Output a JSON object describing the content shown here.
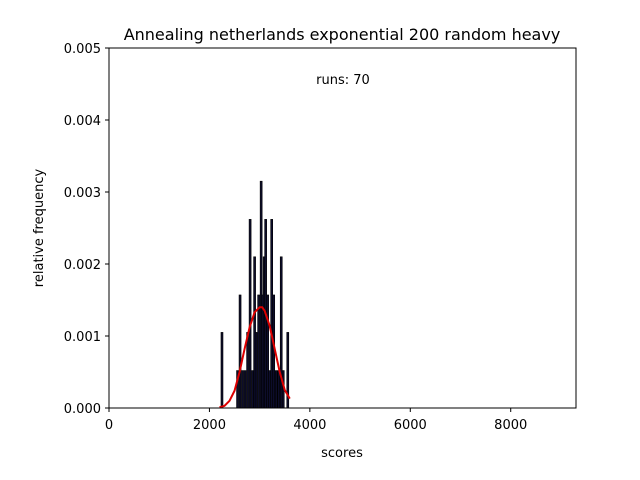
{
  "chart_data": {
    "type": "bar",
    "title": "Annealing netherlands exponential 200 random heavy",
    "xlabel": "scores",
    "ylabel": "relative frequency",
    "annotation": "runs: 70",
    "xlim": [
      0,
      9300
    ],
    "ylim": [
      0,
      0.005
    ],
    "xticks": [
      0,
      2000,
      4000,
      6000,
      8000
    ],
    "xtick_labels": [
      "0",
      "2000",
      "4000",
      "6000",
      "8000"
    ],
    "yticks": [
      0,
      0.001,
      0.002,
      0.003,
      0.004,
      0.005
    ],
    "ytick_labels": [
      "0.000",
      "0.001",
      "0.002",
      "0.003",
      "0.004",
      "0.005"
    ],
    "grid": false,
    "bin_width": 27,
    "bars_color": "#0d0d2b",
    "curve_color": "#dd0000",
    "bars": [
      {
        "x": 2250,
        "value": 0.00105
      },
      {
        "x": 2560,
        "value": 0.00052
      },
      {
        "x": 2610,
        "value": 0.00157
      },
      {
        "x": 2660,
        "value": 0.00052
      },
      {
        "x": 2710,
        "value": 0.00052
      },
      {
        "x": 2760,
        "value": 0.00105
      },
      {
        "x": 2810,
        "value": 0.00262
      },
      {
        "x": 2860,
        "value": 0.00052
      },
      {
        "x": 2900,
        "value": 0.0021
      },
      {
        "x": 2930,
        "value": 0.00105
      },
      {
        "x": 2980,
        "value": 0.00157
      },
      {
        "x": 3030,
        "value": 0.00315
      },
      {
        "x": 3060,
        "value": 0.00157
      },
      {
        "x": 3090,
        "value": 0.0021
      },
      {
        "x": 3120,
        "value": 0.00262
      },
      {
        "x": 3160,
        "value": 0.00157
      },
      {
        "x": 3200,
        "value": 0.00052
      },
      {
        "x": 3240,
        "value": 0.00262
      },
      {
        "x": 3280,
        "value": 0.00157
      },
      {
        "x": 3330,
        "value": 0.00052
      },
      {
        "x": 3380,
        "value": 0.00052
      },
      {
        "x": 3430,
        "value": 0.0021
      },
      {
        "x": 3470,
        "value": 0.00052
      },
      {
        "x": 3560,
        "value": 0.00105
      }
    ],
    "fit_curve": {
      "x": [
        2200,
        2300,
        2400,
        2500,
        2600,
        2700,
        2800,
        2900,
        3000,
        3050,
        3100,
        3200,
        3300,
        3400,
        3500,
        3600
      ],
      "y": [
        1e-05,
        3e-05,
        0.0001,
        0.00024,
        0.0005,
        0.00082,
        0.00112,
        0.00133,
        0.0014,
        0.0014,
        0.00135,
        0.00114,
        0.00082,
        0.0005,
        0.00025,
        0.00013
      ]
    }
  }
}
